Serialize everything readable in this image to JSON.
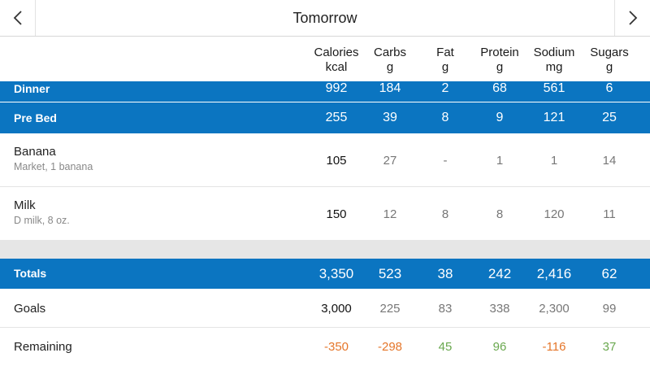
{
  "header": {
    "title": "Tomorrow",
    "prev_icon": "chevron-left-icon",
    "next_icon": "chevron-right-icon"
  },
  "columns": [
    {
      "name": "Calories",
      "unit": "kcal"
    },
    {
      "name": "Carbs",
      "unit": "g"
    },
    {
      "name": "Fat",
      "unit": "g"
    },
    {
      "name": "Protein",
      "unit": "g"
    },
    {
      "name": "Sodium",
      "unit": "mg"
    },
    {
      "name": "Sugars",
      "unit": "g"
    }
  ],
  "meals": [
    {
      "label": "Dinner",
      "values": [
        "992",
        "184",
        "2",
        "68",
        "561",
        "6"
      ]
    },
    {
      "label": "Pre Bed",
      "values": [
        "255",
        "39",
        "8",
        "9",
        "121",
        "25"
      ]
    }
  ],
  "foods": [
    {
      "name": "Banana",
      "detail": "Market, 1 banana",
      "values": [
        "105",
        "27",
        "-",
        "1",
        "1",
        "14"
      ]
    },
    {
      "name": "Milk",
      "detail": "D milk, 8 oz.",
      "values": [
        "150",
        "12",
        "8",
        "8",
        "120",
        "11"
      ]
    }
  ],
  "totals": {
    "label": "Totals",
    "values": [
      "3,350",
      "523",
      "38",
      "242",
      "2,416",
      "62"
    ]
  },
  "goals": {
    "label": "Goals",
    "values": [
      "3,000",
      "225",
      "83",
      "338",
      "2,300",
      "99"
    ]
  },
  "remaining": {
    "label": "Remaining",
    "values": [
      "-350",
      "-298",
      "45",
      "96",
      "-116",
      "37"
    ]
  },
  "colors": {
    "meal_bar": "#0b75c1",
    "over": "#e5762a",
    "under": "#6aa84f",
    "separator": "#e6e6e6"
  }
}
